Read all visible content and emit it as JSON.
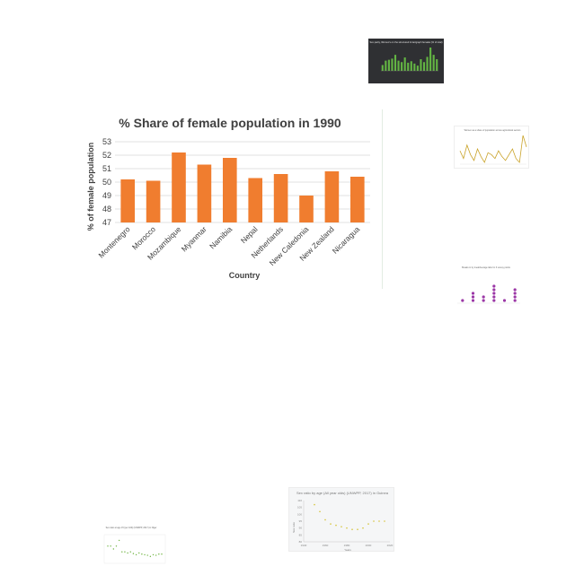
{
  "main_chart": {
    "title": "% Share of female population in 1990",
    "xlabel": "Country",
    "ylabel": "% of female population",
    "bar_color": "#f07d2f"
  },
  "thumbnails": {
    "green_title": "Sex parity, Women's on the structured & bar/graph females (% of total)",
    "line_title": "Women as a share of population across agricultural sectors",
    "dots_title": "Breaks in by meal/Average labor in 3 survey points",
    "small_scatter_title": "Sex ratio at age 15 (per 100) (UNWPP, 2017) in Niger",
    "large_scatter_title": "Sex ratio by age (All year olds) (UNWPP, 2017) in Guinea",
    "large_scatter_ylabel": "Sex ratio",
    "large_scatter_xlabel": "Years",
    "large_scatter_xticks": [
      "1940",
      "1960",
      "1980",
      "2000",
      "2020"
    ],
    "large_scatter_yticks": [
      "110",
      "105",
      "100",
      "95",
      "90",
      "85",
      "80"
    ]
  },
  "chart_data": [
    {
      "type": "bar",
      "title": "% Share of female population in 1990",
      "xlabel": "Country",
      "ylabel": "% of female population",
      "categories": [
        "Montenegro",
        "Morocco",
        "Mozambique",
        "Myanmar",
        "Namibia",
        "Nepal",
        "Netherlands",
        "New Caledonia",
        "New Zealand",
        "Nicaragua"
      ],
      "values": [
        50.2,
        50.1,
        52.2,
        51.3,
        51.8,
        50.3,
        50.6,
        49.0,
        50.8,
        50.4
      ],
      "ylim": [
        47,
        53
      ],
      "yticks": [
        47,
        48,
        49,
        50,
        51,
        52,
        53
      ],
      "grid": true,
      "colors": [
        "#f07d2f"
      ]
    },
    {
      "type": "bar",
      "categories": [
        "1",
        "2",
        "3",
        "4",
        "5",
        "6",
        "7",
        "8",
        "9",
        "10",
        "11",
        "12",
        "13",
        "14",
        "15",
        "16",
        "17",
        "18"
      ],
      "values": [
        20,
        35,
        38,
        42,
        55,
        35,
        30,
        46,
        28,
        33,
        25,
        18,
        40,
        30,
        48,
        80,
        55,
        40
      ],
      "colors": [
        "#63b543"
      ]
    },
    {
      "type": "line",
      "x": [
        1,
        2,
        3,
        4,
        5,
        6,
        7,
        8,
        9,
        10,
        11,
        12,
        13,
        14,
        15,
        16,
        17,
        18,
        19,
        20
      ],
      "values": [
        52,
        48,
        55,
        50,
        47,
        53,
        49,
        46,
        51,
        50,
        48,
        52,
        49,
        47,
        50,
        53,
        48,
        46,
        60,
        54
      ],
      "colors": [
        "#c9a227"
      ]
    },
    {
      "type": "scatter",
      "categories": [
        "1",
        "2",
        "3",
        "4",
        "5",
        "6"
      ],
      "values": [
        1,
        3,
        2,
        5,
        1,
        4
      ],
      "colors": [
        "#9b37a6"
      ]
    },
    {
      "type": "scatter",
      "x": [
        1,
        2,
        3,
        4,
        5,
        6,
        7,
        8,
        9,
        10,
        11,
        12,
        13,
        14,
        15,
        16,
        17,
        18,
        19,
        20
      ],
      "values": [
        6,
        6,
        5.5,
        6,
        7,
        5,
        5,
        4.8,
        5,
        4.7,
        4.5,
        4.8,
        4.6,
        4.5,
        4.4,
        4.2,
        4.5,
        4.4,
        4.6,
        4.6
      ],
      "colors": [
        "#6db33f"
      ]
    },
    {
      "type": "scatter",
      "title": "Sex ratio by age (All year olds) (UNWPP, 2017) in Guinea",
      "xlabel": "Years",
      "ylabel": "Sex ratio",
      "x": [
        1950,
        1955,
        1960,
        1965,
        1970,
        1975,
        1980,
        1985,
        1990,
        1995,
        2000,
        2005,
        2010,
        2015
      ],
      "values": [
        107,
        102,
        96,
        93,
        92,
        91,
        90,
        89,
        89,
        90,
        93,
        95,
        95,
        95
      ],
      "ylim": [
        80,
        110
      ],
      "colors": [
        "#d6c53a"
      ]
    }
  ]
}
